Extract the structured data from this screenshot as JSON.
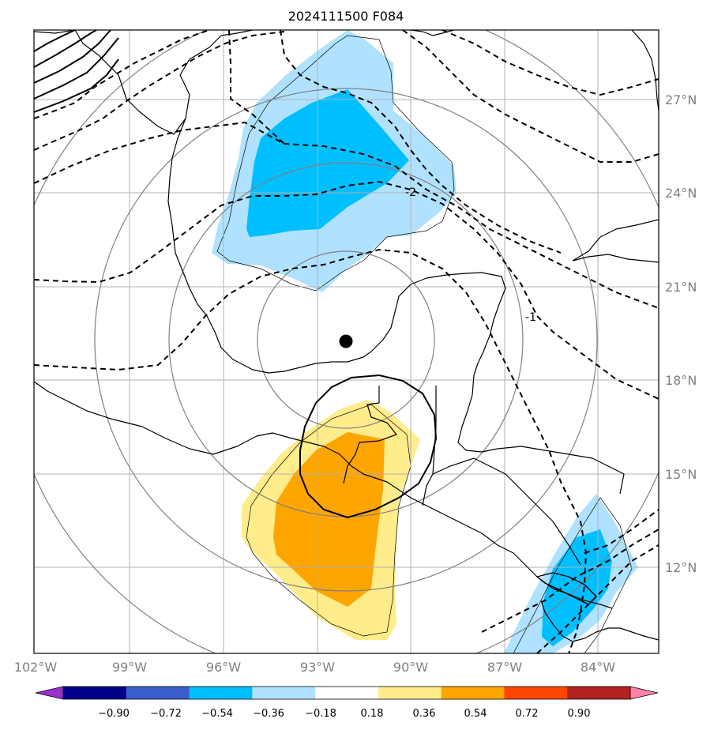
{
  "title": "2024111500 F084",
  "colors": {
    "cb": [
      "#9932cc",
      "#00008b",
      "#3a5fcd",
      "#00bfff",
      "#b0e2ff",
      "#ffffff",
      "#ffec8b",
      "#ffa500",
      "#ff4500",
      "#b22222",
      "#ff82ab"
    ],
    "light_blue": "#b0e2ff",
    "blue": "#00bfff",
    "light_yellow": "#ffec8b",
    "orange": "#ffa500"
  },
  "lat_labels": [
    "27°N",
    "24°N",
    "21°N",
    "18°N",
    "15°N",
    "12°N"
  ],
  "lon_labels": [
    "102°W",
    "99°W",
    "96°W",
    "93°W",
    "90°W",
    "87°W",
    "84°W"
  ],
  "colorbar_ticks": [
    "−0.90",
    "−0.72",
    "−0.54",
    "−0.36",
    "−0.18",
    "0.18",
    "0.36",
    "0.54",
    "0.72",
    "0.90"
  ],
  "contour_labels": [
    "-2",
    "-1"
  ],
  "center_marker": {
    "lon": -92.0,
    "lat": 19.2
  }
}
